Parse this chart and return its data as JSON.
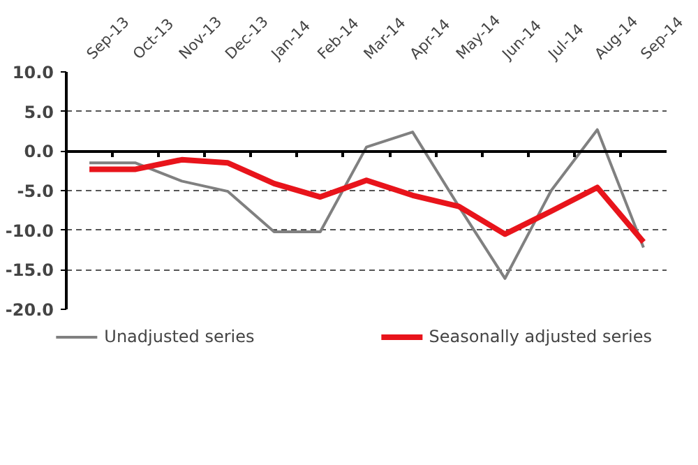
{
  "chart_data": {
    "type": "line",
    "categories": [
      "Sep-13",
      "Oct-13",
      "Nov-13",
      "Dec-13",
      "Jan-14",
      "Feb-14",
      "Mar-14",
      "Apr-14",
      "May-14",
      "Jun-14",
      "Jul-14",
      "Aug-14",
      "Sep-14"
    ],
    "series": [
      {
        "name": "Unadjusted series",
        "color": "#808080",
        "values": [
          -1.5,
          -1.5,
          -3.8,
          -5.1,
          -10.2,
          -10.2,
          0.5,
          2.4,
          -7.0,
          -16.1,
          -5.0,
          2.7,
          -12.2
        ]
      },
      {
        "name": "Seasonally adjusted series",
        "color": "#e8141b",
        "values": [
          -2.3,
          -2.3,
          -1.1,
          -1.5,
          -4.1,
          -5.8,
          -3.7,
          -5.6,
          -7.0,
          -10.5,
          -7.6,
          -4.6,
          -11.5
        ]
      }
    ],
    "ylim": [
      -20,
      10
    ],
    "yticks": [
      {
        "value": -20,
        "label": "-20.0"
      },
      {
        "value": -15,
        "label": "-15.0"
      },
      {
        "value": -10,
        "label": "-10.0"
      },
      {
        "value": -5,
        "label": "-5.0"
      },
      {
        "value": 0,
        "label": "0.0"
      },
      {
        "value": 5,
        "label": "5.0"
      },
      {
        "value": 10,
        "label": "10.0"
      }
    ],
    "grid": "y",
    "legend": "bottom",
    "marker": "none",
    "line_style": "solid"
  }
}
